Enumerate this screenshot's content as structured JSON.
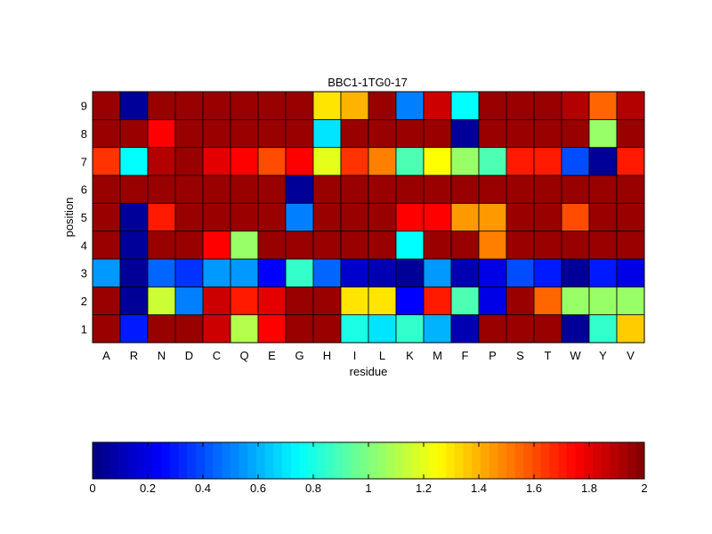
{
  "chart_data": {
    "type": "heatmap",
    "title": "BBC1-1TG0-17",
    "xlabel": "residue",
    "ylabel": "position",
    "x": [
      "A",
      "R",
      "N",
      "D",
      "C",
      "Q",
      "E",
      "G",
      "H",
      "I",
      "L",
      "K",
      "M",
      "F",
      "P",
      "S",
      "T",
      "W",
      "Y",
      "V"
    ],
    "y": [
      1,
      2,
      3,
      4,
      5,
      6,
      7,
      8,
      9
    ],
    "values": [
      [
        1.95,
        0.3,
        1.95,
        1.95,
        1.85,
        1.1,
        1.75,
        1.95,
        1.95,
        0.8,
        0.7,
        0.85,
        0.6,
        0.1,
        1.95,
        1.95,
        1.95,
        0.05,
        0.85,
        1.35
      ],
      [
        1.95,
        0.05,
        1.15,
        0.5,
        1.85,
        1.7,
        1.8,
        1.95,
        1.95,
        1.3,
        1.3,
        0.25,
        1.7,
        0.9,
        0.2,
        1.95,
        1.55,
        1.05,
        1.05,
        1.05
      ],
      [
        0.55,
        0.05,
        0.45,
        0.35,
        0.55,
        0.55,
        0.25,
        0.85,
        0.45,
        0.15,
        0.1,
        0.05,
        0.55,
        0.1,
        0.2,
        0.4,
        0.3,
        0.05,
        0.3,
        0.2
      ],
      [
        1.95,
        0.05,
        1.95,
        1.95,
        1.75,
        1.05,
        1.95,
        1.95,
        1.95,
        1.95,
        1.95,
        0.75,
        1.95,
        1.95,
        1.5,
        1.95,
        1.95,
        1.95,
        1.95,
        1.95
      ],
      [
        1.95,
        0.05,
        1.7,
        1.95,
        1.95,
        1.95,
        1.95,
        0.5,
        1.95,
        1.95,
        1.95,
        1.75,
        1.75,
        1.45,
        1.45,
        1.95,
        1.95,
        1.6,
        1.95,
        1.95
      ],
      [
        1.95,
        1.95,
        1.95,
        1.95,
        1.95,
        1.95,
        1.95,
        0.05,
        1.95,
        1.95,
        1.95,
        1.95,
        1.95,
        1.95,
        1.95,
        1.95,
        1.95,
        1.95,
        1.95,
        1.95
      ],
      [
        1.65,
        0.75,
        1.9,
        1.95,
        1.8,
        1.75,
        1.6,
        1.75,
        1.2,
        1.65,
        1.5,
        0.9,
        1.25,
        1.05,
        0.9,
        1.7,
        1.7,
        0.4,
        0.05,
        1.7
      ],
      [
        1.95,
        1.95,
        1.75,
        1.95,
        1.95,
        1.95,
        1.95,
        1.95,
        0.7,
        1.95,
        1.95,
        1.95,
        1.95,
        0.05,
        1.95,
        1.95,
        1.95,
        1.95,
        1.05,
        1.95
      ],
      [
        1.95,
        0.05,
        1.95,
        1.95,
        1.95,
        1.95,
        1.95,
        1.95,
        1.3,
        1.4,
        1.95,
        0.5,
        1.85,
        0.75,
        1.95,
        1.95,
        1.95,
        1.9,
        1.55,
        1.9
      ]
    ],
    "colorbar": {
      "colormap": "jet",
      "range": [
        0,
        2
      ],
      "ticks": [
        "0",
        "0.2",
        "0.4",
        "0.6",
        "0.8",
        "1",
        "1.2",
        "1.4",
        "1.6",
        "1.8",
        "2"
      ]
    }
  }
}
